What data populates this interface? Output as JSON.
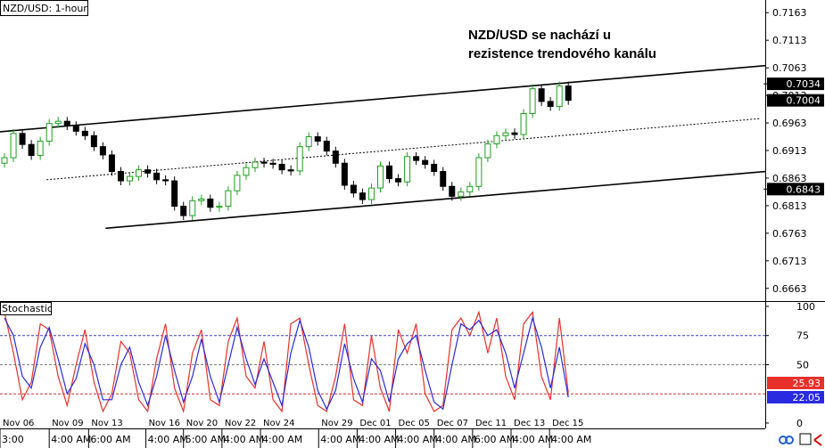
{
  "chart_data": [
    {
      "type": "candlestick",
      "title": "NZD/USD: 1-hour",
      "annotation": [
        "NZD/USD se nachází u",
        "rezistence trendového kanálu"
      ],
      "x": [
        0,
        1,
        2,
        3,
        4,
        5,
        6,
        7,
        8,
        9,
        10,
        11,
        12,
        13,
        14,
        15,
        16,
        17,
        18,
        19,
        20,
        21,
        22,
        23,
        24,
        25,
        26,
        27,
        28,
        29,
        30,
        31,
        32,
        33,
        34,
        35,
        36,
        37,
        38,
        39,
        40,
        41,
        42,
        43,
        44,
        45,
        46,
        47,
        48,
        49,
        50,
        51,
        52,
        53,
        54,
        55,
        56,
        57,
        58,
        59,
        60,
        61,
        62,
        63
      ],
      "open": [
        0.689,
        0.69,
        0.6944,
        0.6924,
        0.6904,
        0.693,
        0.6962,
        0.6966,
        0.6958,
        0.6948,
        0.694,
        0.692,
        0.6905,
        0.6875,
        0.6858,
        0.6866,
        0.6878,
        0.6872,
        0.686,
        0.6858,
        0.6812,
        0.6795,
        0.6822,
        0.6825,
        0.681,
        0.6812,
        0.684,
        0.6868,
        0.6882,
        0.6892,
        0.689,
        0.6888,
        0.6878,
        0.6876,
        0.692,
        0.6938,
        0.693,
        0.6912,
        0.689,
        0.685,
        0.6836,
        0.6824,
        0.6845,
        0.6885,
        0.6862,
        0.6856,
        0.6902,
        0.6895,
        0.6888,
        0.6875,
        0.6848,
        0.683,
        0.6838,
        0.6848,
        0.69,
        0.6925,
        0.694,
        0.6945,
        0.6942,
        0.698,
        0.7025,
        0.7002,
        0.6993,
        0.703
      ],
      "high": [
        0.6908,
        0.6952,
        0.6952,
        0.6932,
        0.6938,
        0.697,
        0.6974,
        0.6974,
        0.6966,
        0.6956,
        0.6948,
        0.6928,
        0.6913,
        0.6883,
        0.6874,
        0.6886,
        0.6886,
        0.688,
        0.6868,
        0.6866,
        0.682,
        0.683,
        0.6833,
        0.6833,
        0.682,
        0.6848,
        0.6876,
        0.689,
        0.69,
        0.69,
        0.6898,
        0.6896,
        0.6886,
        0.6928,
        0.6946,
        0.6946,
        0.6938,
        0.692,
        0.6898,
        0.6858,
        0.6844,
        0.6853,
        0.6893,
        0.6893,
        0.687,
        0.691,
        0.691,
        0.6903,
        0.6896,
        0.6883,
        0.6856,
        0.6846,
        0.6856,
        0.6908,
        0.6933,
        0.6948,
        0.6953,
        0.6953,
        0.6988,
        0.7033,
        0.7033,
        0.701,
        0.7038,
        0.7038
      ],
      "low": [
        0.6882,
        0.6892,
        0.6916,
        0.6896,
        0.6896,
        0.6922,
        0.6954,
        0.695,
        0.694,
        0.6932,
        0.6912,
        0.6897,
        0.6867,
        0.685,
        0.685,
        0.6858,
        0.6864,
        0.6852,
        0.685,
        0.6804,
        0.6787,
        0.6787,
        0.6814,
        0.6802,
        0.6802,
        0.6804,
        0.6832,
        0.686,
        0.6874,
        0.6882,
        0.688,
        0.687,
        0.6868,
        0.6868,
        0.6912,
        0.6922,
        0.6904,
        0.6882,
        0.6842,
        0.6828,
        0.6816,
        0.6816,
        0.6837,
        0.6854,
        0.6848,
        0.6848,
        0.6887,
        0.688,
        0.6867,
        0.684,
        0.6822,
        0.6822,
        0.683,
        0.684,
        0.6892,
        0.6917,
        0.6932,
        0.6934,
        0.6934,
        0.6972,
        0.6994,
        0.6985,
        0.6985,
        0.6996
      ],
      "close": [
        0.69,
        0.6944,
        0.6924,
        0.6904,
        0.693,
        0.6962,
        0.6966,
        0.6958,
        0.6948,
        0.694,
        0.692,
        0.6905,
        0.6875,
        0.6858,
        0.6866,
        0.6878,
        0.6872,
        0.686,
        0.6858,
        0.6812,
        0.6795,
        0.6822,
        0.6825,
        0.681,
        0.6812,
        0.684,
        0.6868,
        0.6882,
        0.6892,
        0.689,
        0.6888,
        0.6878,
        0.6876,
        0.692,
        0.6938,
        0.693,
        0.6912,
        0.689,
        0.685,
        0.6836,
        0.6824,
        0.6845,
        0.6885,
        0.6862,
        0.6856,
        0.6902,
        0.6895,
        0.6888,
        0.6875,
        0.6848,
        0.683,
        0.6838,
        0.6848,
        0.69,
        0.6925,
        0.694,
        0.6945,
        0.6942,
        0.698,
        0.7025,
        0.7002,
        0.6993,
        0.703,
        0.7004
      ],
      "up_color": "#1e9e1e",
      "down_color": "#000000",
      "xlim": [
        -0.5,
        85
      ],
      "ylim": [
        0.664,
        0.7186
      ],
      "yticks": [
        0.6663,
        0.6713,
        0.6763,
        0.6813,
        0.6863,
        0.6913,
        0.6963,
        0.7013,
        0.7063,
        0.7113,
        0.7163
      ],
      "hlines": [
        0.7034,
        0.6843
      ],
      "channel_lines": [
        {
          "x": [
            -0.5,
            85
          ],
          "y": [
            0.6947,
            0.7067
          ],
          "dashed": false
        },
        {
          "x": [
            4.7,
            84.5
          ],
          "y": [
            0.686,
            0.6971
          ],
          "dashed": true
        },
        {
          "x": [
            11.3,
            85
          ],
          "y": [
            0.6772,
            0.6875
          ],
          "dashed": false
        }
      ]
    },
    {
      "type": "line",
      "title": "Stochastic",
      "x": [
        0,
        1,
        2,
        3,
        4,
        5,
        6,
        7,
        8,
        9,
        10,
        11,
        12,
        13,
        14,
        15,
        16,
        17,
        18,
        19,
        20,
        21,
        22,
        23,
        24,
        25,
        26,
        27,
        28,
        29,
        30,
        31,
        32,
        33,
        34,
        35,
        36,
        37,
        38,
        39,
        40,
        41,
        42,
        43,
        44,
        45,
        46,
        47,
        48,
        49,
        50,
        51,
        52,
        53,
        54,
        55,
        56,
        57,
        58,
        59,
        60,
        61,
        62,
        63
      ],
      "series": [
        {
          "color": "#e8302a",
          "values": [
            95,
            60,
            20,
            35,
            85,
            80,
            40,
            15,
            50,
            80,
            35,
            10,
            25,
            70,
            60,
            20,
            10,
            55,
            85,
            30,
            10,
            60,
            80,
            20,
            15,
            70,
            90,
            40,
            30,
            70,
            20,
            10,
            85,
            90,
            50,
            15,
            10,
            40,
            85,
            20,
            15,
            75,
            30,
            10,
            80,
            60,
            85,
            25,
            10,
            15,
            80,
            90,
            75,
            95,
            60,
            90,
            40,
            20,
            85,
            95,
            40,
            20,
            90,
            25.93
          ]
        },
        {
          "color": "#2a2ae0",
          "values": [
            90,
            75,
            40,
            30,
            65,
            82,
            55,
            25,
            38,
            68,
            50,
            20,
            20,
            50,
            65,
            35,
            15,
            40,
            75,
            45,
            18,
            40,
            72,
            40,
            18,
            50,
            82,
            55,
            33,
            55,
            35,
            15,
            60,
            88,
            65,
            28,
            12,
            28,
            68,
            38,
            18,
            55,
            45,
            18,
            55,
            68,
            75,
            45,
            18,
            12,
            50,
            85,
            80,
            88,
            75,
            80,
            60,
            30,
            60,
            90,
            65,
            30,
            65,
            22.05
          ]
        }
      ],
      "xlim": [
        -0.5,
        85
      ],
      "ylim": [
        -4.6,
        103.8
      ],
      "yticks": [
        0,
        50,
        75,
        100
      ],
      "levels": [
        {
          "value": 75,
          "color": "#3a3ac8"
        },
        {
          "value": 50,
          "color": "#808080"
        },
        {
          "value": 25,
          "color": "#d03030"
        }
      ],
      "xticks": [
        {
          "value": -0.5,
          "label": "Nov 06"
        },
        {
          "value": 5,
          "label": "Nov 09"
        },
        {
          "value": 9.4,
          "label": "Nov 13"
        },
        {
          "value": 15.8,
          "label": "Nov 16"
        },
        {
          "value": 20,
          "label": "Nov 20"
        },
        {
          "value": 24.3,
          "label": "Nov 22"
        },
        {
          "value": 28.6,
          "label": "Nov 24"
        },
        {
          "value": 35.1,
          "label": "Nov 29"
        },
        {
          "value": 39.4,
          "label": "Dec 01"
        },
        {
          "value": 43.7,
          "label": "Dec 05"
        },
        {
          "value": 48,
          "label": "Dec 07"
        },
        {
          "value": 52.3,
          "label": "Dec 11"
        },
        {
          "value": 56.6,
          "label": "Dec 13"
        },
        {
          "value": 60.9,
          "label": "Dec 15"
        }
      ],
      "xtick_times": [
        "3:00",
        "4:00 AM",
        "6:00 AM",
        "4:00 AM",
        "5:00 AM",
        "4:00 AM",
        "4:00 AM",
        "4:00 AM",
        "4:00 AM",
        "4:00 AM",
        "4:00 AM",
        "6:00 AM",
        "4:00 AM",
        "4:00 AM"
      ]
    }
  ]
}
